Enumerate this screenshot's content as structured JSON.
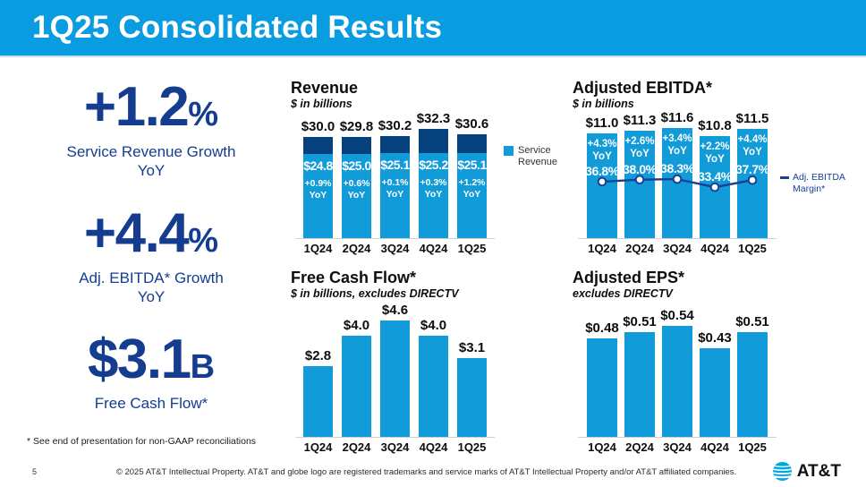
{
  "slide": {
    "title": "1Q25 Consolidated Results",
    "page_number": "5",
    "copyright": "© 2025 AT&T Intellectual Property.  AT&T and globe logo are registered trademarks and service marks of AT&T Intellectual Property and/or AT&T affiliated companies.",
    "logo_text": "AT&T",
    "footnote": "* See end of presentation for non-GAAP reconciliations"
  },
  "theme": {
    "header_blue": "#0a9ce0",
    "bar_light_blue": "#119bd9",
    "bar_dark_blue": "#04417d",
    "line_navy": "#1b3f94",
    "stat_navy": "#143d90"
  },
  "highlights": [
    {
      "value": "+1.2",
      "suffix": "%",
      "label_line1": "Service Revenue Growth",
      "label_line2": "YoY"
    },
    {
      "value": "+4.4",
      "suffix": "%",
      "label_line1": "Adj. EBITDA* Growth",
      "label_line2": "YoY"
    },
    {
      "value": "$3.1",
      "suffix": "B",
      "label_line1": "Free Cash Flow*",
      "label_line2": ""
    }
  ],
  "chart_data": [
    {
      "id": "revenue",
      "type": "bar",
      "stacked": true,
      "title": "Revenue",
      "subtitle": "$ in billions",
      "categories": [
        "1Q24",
        "2Q24",
        "3Q24",
        "4Q24",
        "1Q25"
      ],
      "totals": [
        30.0,
        29.8,
        30.2,
        32.3,
        30.6
      ],
      "total_labels": [
        "$30.0",
        "$29.8",
        "$30.2",
        "$32.3",
        "$30.6"
      ],
      "series": [
        {
          "name": "Service Revenue",
          "values": [
            24.8,
            25.0,
            25.1,
            25.2,
            25.1
          ],
          "labels": [
            "$24.8",
            "$25.0",
            "$25.1",
            "$25.2",
            "$25.1"
          ],
          "color": "#119bd9"
        }
      ],
      "yoy_labels": [
        "+0.9%",
        "+0.6%",
        "+0.1%",
        "+0.3%",
        "+1.2%"
      ],
      "yoy_suffix": "YoY",
      "remainder_color": "#04417d",
      "legend_label": "Service Revenue",
      "legend_position": "right",
      "ylim": [
        0,
        32.3
      ],
      "grid": false
    },
    {
      "id": "adjusted-ebitda",
      "type": "bar",
      "overlay_line": true,
      "title": "Adjusted EBITDA*",
      "subtitle": "$ in billions",
      "categories": [
        "1Q24",
        "2Q24",
        "3Q24",
        "4Q24",
        "1Q25"
      ],
      "values": [
        11.0,
        11.3,
        11.6,
        10.8,
        11.5
      ],
      "value_labels": [
        "$11.0",
        "$11.3",
        "$11.6",
        "$10.8",
        "$11.5"
      ],
      "yoy_labels": [
        "+4.3%",
        "+2.6%",
        "+3.4%",
        "+2.2%",
        "+4.4%"
      ],
      "yoy_suffix": "YoY",
      "bar_color": "#119bd9",
      "line": {
        "name": "Adj. EBITDA Margin*",
        "values_pct": [
          36.8,
          38.0,
          38.3,
          33.4,
          37.7
        ],
        "labels": [
          "36.8%",
          "38.0%",
          "38.3%",
          "33.4%",
          "37.7%"
        ],
        "color": "#1b3f94"
      },
      "legend_position": "right",
      "ylim": [
        0,
        11.6
      ],
      "grid": false
    },
    {
      "id": "free-cash-flow",
      "type": "bar",
      "title": "Free Cash Flow*",
      "subtitle": "$ in billions, excludes DIRECTV",
      "categories": [
        "1Q24",
        "2Q24",
        "3Q24",
        "4Q24",
        "1Q25"
      ],
      "values": [
        2.8,
        4.0,
        4.6,
        4.0,
        3.1
      ],
      "value_labels": [
        "$2.8",
        "$4.0",
        "$4.6",
        "$4.0",
        "$3.1"
      ],
      "bar_color": "#119bd9",
      "ylim": [
        0,
        4.6
      ],
      "grid": false
    },
    {
      "id": "adjusted-eps",
      "type": "bar",
      "title": "Adjusted EPS*",
      "subtitle": "excludes DIRECTV",
      "categories": [
        "1Q24",
        "2Q24",
        "3Q24",
        "4Q24",
        "1Q25"
      ],
      "values": [
        0.48,
        0.51,
        0.54,
        0.43,
        0.51
      ],
      "value_labels": [
        "$0.48",
        "$0.51",
        "$0.54",
        "$0.43",
        "$0.51"
      ],
      "bar_color": "#119bd9",
      "ylim": [
        0,
        0.54
      ],
      "grid": false
    }
  ]
}
